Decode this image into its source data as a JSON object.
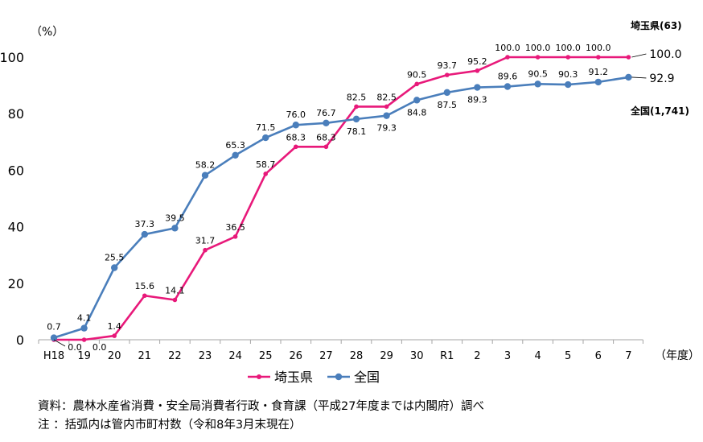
{
  "chart_data": {
    "type": "line",
    "ylabel": "（%）",
    "xlabel": "（年度）",
    "ylim": [
      0,
      100
    ],
    "yticks": [
      0,
      20,
      40,
      60,
      80,
      100
    ],
    "categories": [
      "H18",
      "19",
      "20",
      "21",
      "22",
      "23",
      "24",
      "25",
      "26",
      "27",
      "28",
      "29",
      "30",
      "R1",
      "2",
      "3",
      "4",
      "5",
      "6",
      "7"
    ],
    "series": [
      {
        "name": "埼玉県",
        "color": "#e8197a",
        "end_label": "埼玉県(63)",
        "end_value_label": "100.0",
        "values": [
          0.0,
          0.0,
          1.4,
          15.6,
          14.1,
          31.7,
          36.5,
          58.7,
          68.3,
          68.3,
          82.5,
          82.5,
          90.5,
          93.7,
          95.2,
          100.0,
          100.0,
          100.0,
          100.0,
          100.0
        ],
        "point_labels": [
          "0.0",
          "0.0",
          "1.4",
          "15.6",
          "14.1",
          "31.7",
          "36.5",
          "58.7",
          "68.3",
          "68.3",
          "82.5",
          "82.5",
          "90.5",
          "93.7",
          "95.2",
          "100.0",
          "100.0",
          "100.0",
          "100.0",
          ""
        ]
      },
      {
        "name": "全国",
        "color": "#4a7ebb",
        "end_label": "全国(1,741)",
        "end_value_label": "92.9",
        "values": [
          0.7,
          4.1,
          25.5,
          37.3,
          39.5,
          58.2,
          65.3,
          71.5,
          76.0,
          76.7,
          78.1,
          79.3,
          84.8,
          87.5,
          89.3,
          89.6,
          90.5,
          90.3,
          91.2,
          92.9
        ],
        "point_labels": [
          "0.7",
          "4.1",
          "25.5",
          "37.3",
          "39.5",
          "58.2",
          "65.3",
          "71.5",
          "76.0",
          "76.7",
          "78.1",
          "79.3",
          "84.8",
          "87.5",
          "89.3",
          "89.6",
          "90.5",
          "90.3",
          "91.2",
          ""
        ]
      }
    ]
  },
  "notes": {
    "source": "資料：農林水産省消費・安全局消費者行政・食育課（平成27年度までは内閣府）調べ",
    "note": " 注 ：括弧内は管内市町村数（令和8年3月末現在）"
  }
}
